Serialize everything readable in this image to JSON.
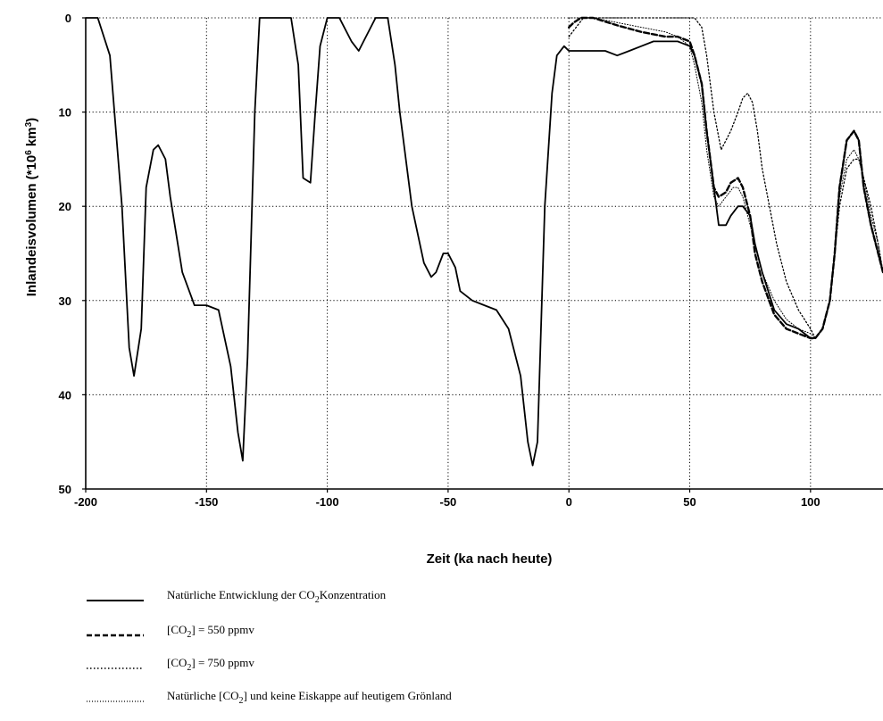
{
  "chart_data": {
    "type": "line",
    "xlabel": "Zeit (ka nach heute)",
    "ylabel_parts": {
      "main": "Inlandeisvolumen (*10",
      "exp1": "6",
      "mid": " km",
      "exp2": "3",
      "end": ")"
    },
    "xlim": [
      -200,
      130
    ],
    "ylim": [
      0,
      50
    ],
    "y_inverted": true,
    "grid": true,
    "x_ticks": [
      -200,
      -150,
      -100,
      -50,
      0,
      50,
      100
    ],
    "y_ticks": [
      0,
      10,
      20,
      30,
      40,
      50
    ],
    "legend_position": "bottom",
    "series": [
      {
        "name_parts": {
          "pre": "Natürliche Entwicklung der CO",
          "sub": "2",
          "post": "Konzentration"
        },
        "style": "solid",
        "x": [
          -200,
          -195,
          -190,
          -185,
          -182,
          -180,
          -177,
          -175,
          -172,
          -170,
          -167,
          -165,
          -160,
          -155,
          -150,
          -145,
          -140,
          -137,
          -135,
          -133,
          -130,
          -128,
          -125,
          -120,
          -117,
          -115,
          -112,
          -110,
          -107,
          -105,
          -103,
          -100,
          -95,
          -90,
          -87,
          -85,
          -80,
          -77,
          -75,
          -72,
          -70,
          -65,
          -60,
          -57,
          -55,
          -52,
          -50,
          -47,
          -45,
          -40,
          -35,
          -30,
          -25,
          -20,
          -17,
          -15,
          -13,
          -10,
          -7,
          -5,
          -2,
          0,
          5,
          10,
          15,
          20,
          25,
          30,
          35,
          40,
          45,
          50,
          52,
          55,
          57,
          60,
          62,
          65,
          67,
          70,
          72,
          75,
          77,
          80,
          85,
          90,
          95,
          100,
          102,
          105,
          108,
          110,
          112,
          115,
          118,
          120,
          122,
          125,
          128,
          130
        ],
        "y": [
          0,
          0,
          4,
          20,
          35,
          38,
          33,
          18,
          14,
          13.5,
          15,
          19,
          27,
          30.5,
          30.5,
          31,
          37,
          44,
          47,
          36,
          10,
          0,
          0,
          0,
          0,
          0,
          5,
          17,
          17.5,
          10,
          3,
          0,
          0,
          2.5,
          3.5,
          2.5,
          0,
          0,
          0,
          5,
          10,
          20,
          26,
          27.5,
          27,
          25,
          25,
          26.5,
          29,
          30,
          30.5,
          31,
          33,
          38,
          45,
          47.5,
          45,
          20,
          8,
          4,
          3,
          3.5,
          3.5,
          3.5,
          3.5,
          4,
          3.5,
          3,
          2.5,
          2.5,
          2.5,
          3,
          4,
          7,
          12,
          18,
          22,
          22,
          21,
          20,
          20,
          21,
          24,
          27,
          31,
          32.5,
          33,
          34,
          34,
          33,
          30,
          25,
          18,
          13,
          12,
          13,
          18,
          22,
          25,
          27
        ]
      },
      {
        "name_parts": {
          "pre": "[CO",
          "sub": "2",
          "post": "] = 550 ppmv"
        },
        "style": "dashed",
        "x": [
          0,
          2,
          5,
          10,
          20,
          30,
          40,
          45,
          50,
          52,
          55,
          57,
          60,
          62,
          65,
          67,
          70,
          72,
          75,
          77,
          80,
          85,
          90,
          95,
          100,
          102,
          105,
          108,
          110,
          112,
          115,
          118,
          120,
          122,
          125,
          128,
          130
        ],
        "y": [
          1,
          0.5,
          0,
          0,
          0.8,
          1.5,
          2,
          2,
          2.5,
          4,
          7,
          12,
          18,
          19,
          18.5,
          17.5,
          17,
          18,
          21,
          25,
          28,
          31.5,
          33,
          33.5,
          34,
          34,
          33,
          30,
          25,
          18,
          13,
          12,
          13,
          18,
          22,
          25,
          27
        ]
      },
      {
        "name_parts": {
          "pre": "[CO",
          "sub": "2",
          "post": "] = 750 ppmv"
        },
        "style": "dotted",
        "x": [
          0,
          3,
          6,
          10,
          20,
          30,
          40,
          50,
          52,
          55,
          57,
          60,
          63,
          65,
          67,
          70,
          72,
          74,
          76,
          78,
          80,
          83,
          86,
          90,
          95,
          100,
          102,
          105,
          108,
          110,
          112,
          115,
          118,
          120,
          122,
          125,
          128,
          130
        ],
        "y": [
          2,
          1,
          0,
          0,
          0,
          0,
          0,
          0,
          0,
          1,
          4,
          10,
          14,
          13,
          12,
          10,
          8.5,
          8,
          9,
          12,
          16,
          20,
          24,
          28,
          31,
          33,
          34,
          33,
          30,
          25,
          20,
          16,
          15,
          15,
          17,
          20,
          24,
          27
        ]
      },
      {
        "name_parts": {
          "pre": "Natürliche [CO",
          "sub": "2",
          "post": "] und keine Eiskappe auf heutigem Grönland"
        },
        "style": "dotted-fine",
        "x": [
          0,
          5,
          10,
          20,
          30,
          40,
          45,
          50,
          52,
          55,
          57,
          60,
          62,
          65,
          68,
          70,
          72,
          75,
          78,
          80,
          85,
          90,
          95,
          100,
          102,
          105,
          108,
          110,
          112,
          115,
          118,
          120,
          122,
          125,
          128,
          130
        ],
        "y": [
          0,
          0,
          0,
          0.5,
          1,
          1.5,
          2,
          3,
          5,
          9,
          14,
          19,
          20,
          19,
          18,
          18,
          19,
          22,
          25,
          27,
          30,
          32,
          33,
          33.5,
          34,
          33,
          30,
          25,
          19,
          15,
          14,
          15,
          17,
          21,
          24,
          27
        ]
      }
    ]
  }
}
